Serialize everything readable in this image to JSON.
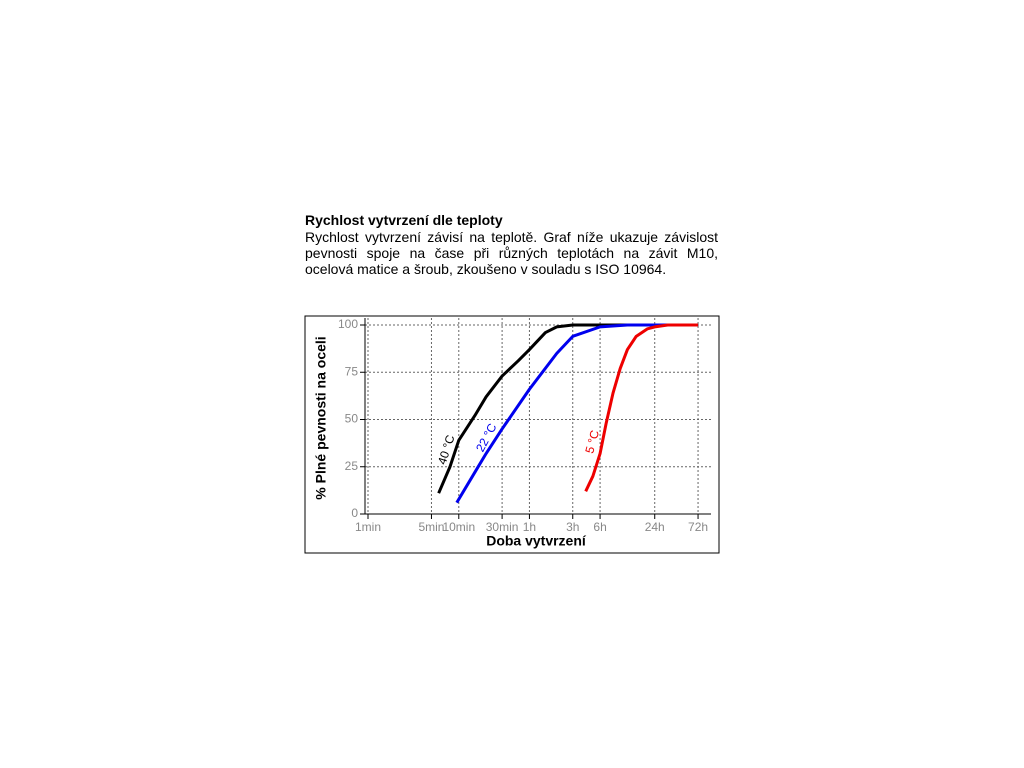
{
  "header": {
    "title": "Rychlost vytvrzení dle teploty"
  },
  "paragraph": "Rychlost vytvrzení závisí na teplotě. Graf níže ukazuje závislost pevnosti spoje na čase při různých teplotách na závit M10, ocelová matice a šroub, zkoušeno v souladu s ISO 10964.",
  "chart_data": {
    "type": "line",
    "x_label": "Doba vytvrzení",
    "y_label": "% Plné pevnosti na oceli",
    "x_log": true,
    "grid": true,
    "xlim": [
      1,
      6000
    ],
    "ylim": [
      0,
      100
    ],
    "xticks": [
      {
        "value": 1,
        "label": "1min"
      },
      {
        "value": 5,
        "label": "5min"
      },
      {
        "value": 10,
        "label": "10min"
      },
      {
        "value": 30,
        "label": "30min"
      },
      {
        "value": 60,
        "label": "1h"
      },
      {
        "value": 180,
        "label": "3h"
      },
      {
        "value": 360,
        "label": "6h"
      },
      {
        "value": 1440,
        "label": "24h"
      },
      {
        "value": 4320,
        "label": "72h"
      }
    ],
    "yticks": [
      0,
      25,
      50,
      75,
      100
    ],
    "series": [
      {
        "name": "40 °C",
        "color": "#000000",
        "x": [
          6,
          8,
          10,
          15,
          20,
          30,
          45,
          60,
          90,
          120,
          180,
          4320
        ],
        "values": [
          11,
          25,
          39,
          52,
          62,
          73,
          81,
          87,
          96,
          99,
          100,
          100
        ]
      },
      {
        "name": "22 °C",
        "color": "#0000ee",
        "x": [
          9.5,
          15,
          20,
          30,
          60,
          120,
          180,
          360,
          720,
          4320
        ],
        "values": [
          6,
          22,
          32,
          45,
          66,
          85,
          94,
          99,
          100,
          100
        ]
      },
      {
        "name": "5 °C",
        "color": "#ee0000",
        "x": [
          250,
          300,
          360,
          420,
          500,
          600,
          720,
          900,
          1200,
          1440,
          2000,
          4320
        ],
        "values": [
          12,
          20,
          32,
          48,
          64,
          77,
          87,
          94,
          98,
          99,
          100,
          100
        ]
      }
    ]
  }
}
